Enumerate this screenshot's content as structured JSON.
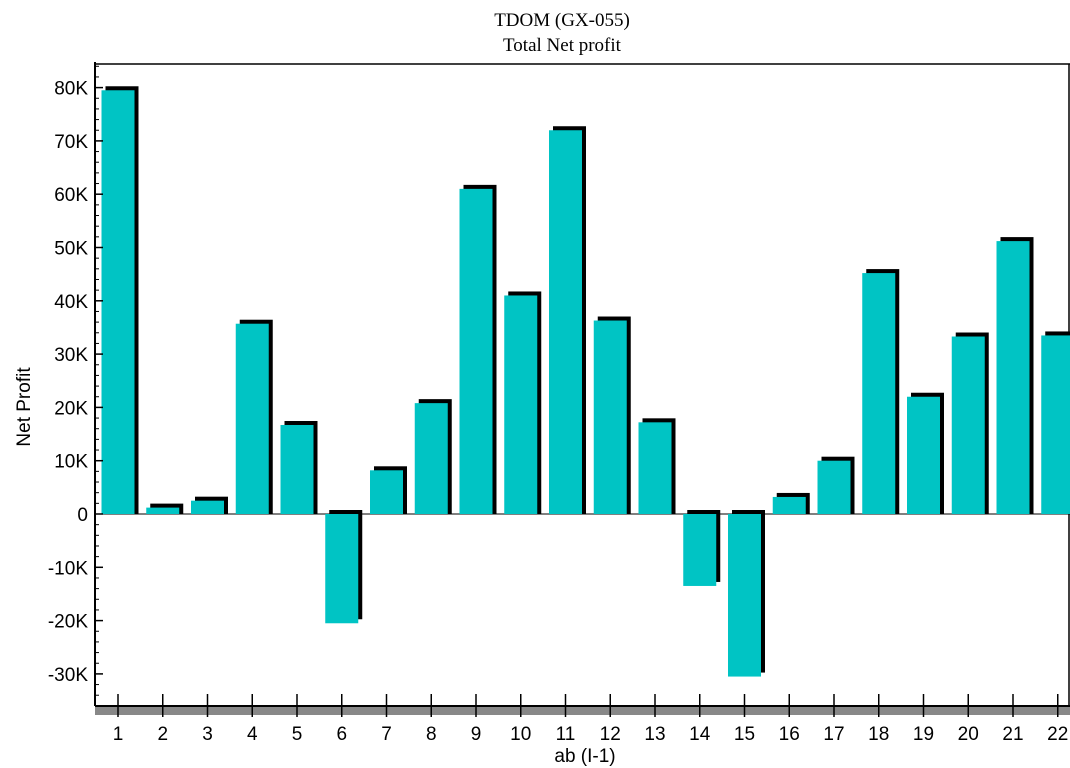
{
  "chart_data": {
    "type": "bar",
    "title": "TDOM (GX-055)",
    "subtitle": "Total Net profit",
    "xlabel": "ab (I-1)",
    "ylabel": "Net Profit",
    "categories": [
      "1",
      "2",
      "3",
      "4",
      "5",
      "6",
      "7",
      "8",
      "9",
      "10",
      "11",
      "12",
      "13",
      "14",
      "15",
      "16",
      "17",
      "18",
      "19",
      "20",
      "21",
      "22"
    ],
    "values": [
      79500,
      1200,
      2500,
      35700,
      16700,
      -20500,
      8200,
      20800,
      61000,
      41000,
      72000,
      36300,
      17200,
      -13500,
      -30500,
      3200,
      10000,
      45200,
      22000,
      33300,
      51200,
      33500
    ],
    "ylim": [
      -35000,
      85000
    ],
    "yticks": [
      80000,
      70000,
      60000,
      50000,
      40000,
      30000,
      20000,
      10000,
      0,
      -10000,
      -20000,
      -30000
    ],
    "ytick_labels": [
      "80K",
      "70K",
      "60K",
      "50K",
      "40K",
      "30K",
      "20K",
      "10K",
      "0",
      "-10K",
      "-20K",
      "-30K"
    ],
    "bar_color": "#00c4c4",
    "shadow_color": "#000000",
    "legend": "none",
    "grid": false
  }
}
